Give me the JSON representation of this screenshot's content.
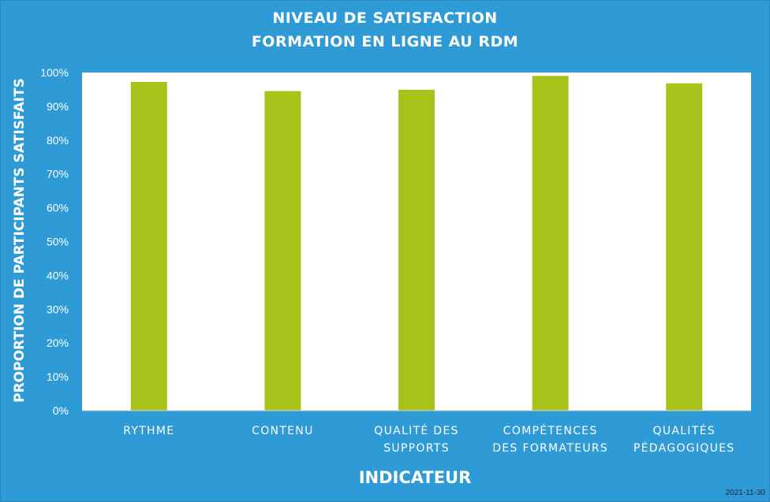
{
  "chart_data": {
    "type": "bar",
    "title": [
      "NIVEAU DE SATISFACTION",
      "FORMATION EN LIGNE AU RDM"
    ],
    "xlabel": "INDICATEUR",
    "ylabel": "PROPORTION DE PARTICIPANTS SATISFAITS",
    "categories": [
      [
        "RYTHME"
      ],
      [
        "CONTENU"
      ],
      [
        "QUALITÉ DES",
        "SUPPORTS"
      ],
      [
        "COMPÉTENCES",
        "DES FORMATEURS"
      ],
      [
        "QUALITÉS",
        "PÉDAGOGIQUES"
      ]
    ],
    "values": [
      97.2,
      94.5,
      94.9,
      99.0,
      96.8
    ],
    "yticks": [
      "0%",
      "10%",
      "20%",
      "30%",
      "40%",
      "50%",
      "60%",
      "70%",
      "80%",
      "90%",
      "100%"
    ],
    "ylim": [
      0,
      100
    ],
    "grid": false,
    "bar_color": "#A8C41A",
    "plot_background": "#FFFFFF",
    "background": "#2E9AD6"
  },
  "footer": {
    "date": "2021-11-30"
  }
}
